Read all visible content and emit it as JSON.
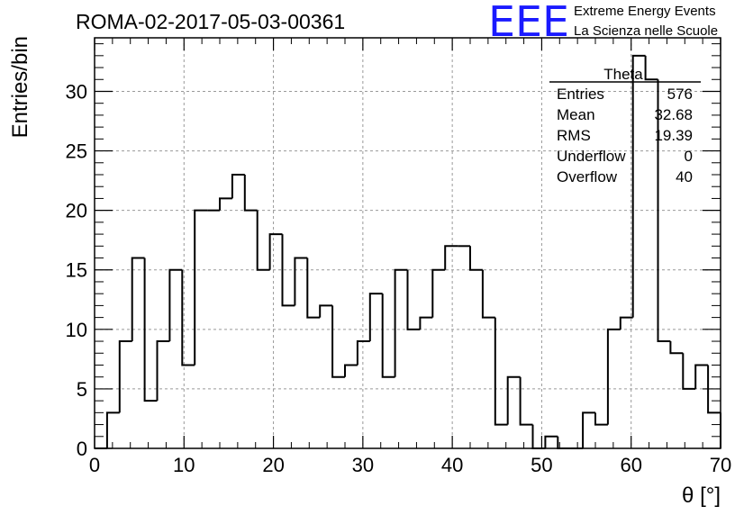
{
  "header": {
    "run_title": "ROMA-02-2017-05-03-00361"
  },
  "logo": {
    "mark": "EEE",
    "line1": "Extreme Energy Events",
    "line2": "La Scienza nelle Scuole",
    "color": "#1a1aff"
  },
  "chart_data": {
    "type": "bar",
    "histogram": true,
    "bin_width": 1.4,
    "x_start": 0,
    "xlabel": "θ [°]",
    "ylabel": "Entries/bin",
    "xlim": [
      0,
      70
    ],
    "ylim": [
      0,
      34.5
    ],
    "x_ticks": [
      "0",
      "10",
      "20",
      "30",
      "40",
      "50",
      "60",
      "70"
    ],
    "y_ticks": [
      "0",
      "5",
      "10",
      "15",
      "20",
      "25",
      "30"
    ],
    "grid": true,
    "values": [
      0,
      3,
      9,
      16,
      4,
      9,
      15,
      7,
      20,
      20,
      21,
      23,
      20,
      15,
      18,
      12,
      16,
      11,
      12,
      6,
      7,
      9,
      13,
      6,
      15,
      10,
      11,
      15,
      17,
      17,
      15,
      11,
      2,
      6,
      2,
      0,
      1,
      0,
      0,
      3,
      2,
      10,
      11,
      33,
      31,
      9,
      8,
      5,
      7,
      3
    ],
    "stats_box": {
      "title": "Theta",
      "rows": [
        {
          "label": "Entries",
          "value": "576"
        },
        {
          "label": "Mean",
          "value": "32.68"
        },
        {
          "label": "RMS",
          "value": "19.39"
        },
        {
          "label": "Underflow",
          "value": "0"
        },
        {
          "label": "Overflow",
          "value": "40"
        }
      ]
    }
  }
}
